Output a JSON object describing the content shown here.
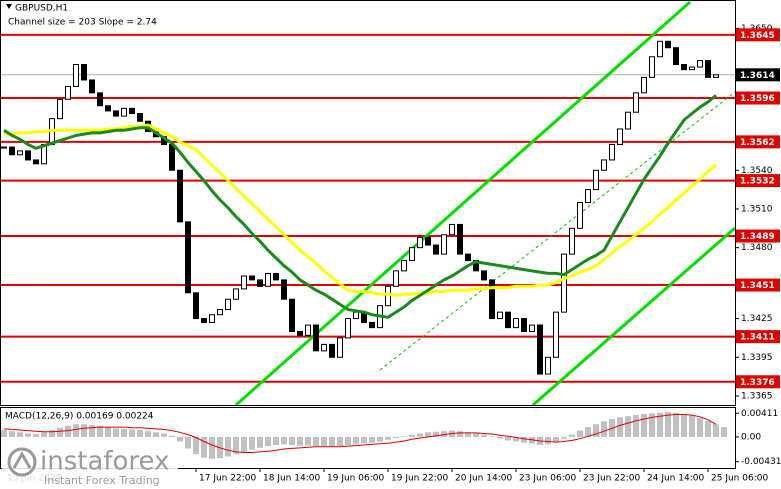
{
  "chart_data": [
    {
      "type": "candlestick",
      "title": "GBPUSD,H1",
      "subtitle": "Channel size = 203 Slope = 2.74",
      "categories": [
        "13 Jun 2025",
        null,
        null,
        null,
        null,
        null,
        null,
        null,
        null,
        null,
        null,
        null,
        null,
        null,
        null,
        null,
        null,
        null,
        null,
        null,
        null,
        null,
        null,
        null,
        "17 Jun 22:00",
        null,
        null,
        null,
        null,
        null,
        null,
        null,
        "18 Jun 14:00",
        null,
        null,
        null,
        null,
        null,
        null,
        null,
        "19 Jun 06:00",
        null,
        null,
        null,
        null,
        null,
        null,
        null,
        "19 Jun 22:00",
        null,
        null,
        null,
        null,
        null,
        null,
        null,
        "20 Jun 14:00",
        null,
        null,
        null,
        null,
        null,
        null,
        null,
        "23 Jun 06:00",
        null,
        null,
        null,
        null,
        null,
        null,
        null,
        "23 Jun 22:00",
        null,
        null,
        null,
        null,
        null,
        null,
        null,
        "24 Jun 14:00",
        null,
        null,
        null,
        null,
        null,
        null,
        null,
        "25 Jun 06:00",
        null
      ],
      "values": [
        1.3558,
        1.3552,
        1.3555,
        1.3548,
        1.3545,
        1.356,
        1.358,
        1.3595,
        1.3605,
        1.3622,
        1.361,
        1.36,
        1.359,
        1.3586,
        1.3582,
        1.3588,
        1.3584,
        1.3578,
        1.357,
        1.3566,
        1.356,
        1.354,
        1.35,
        1.3445,
        1.3425,
        1.3422,
        1.3428,
        1.3432,
        1.344,
        1.3448,
        1.3458,
        1.3455,
        1.345,
        1.346,
        1.3455,
        1.344,
        1.3415,
        1.3412,
        1.342,
        1.34,
        1.3405,
        1.3395,
        1.341,
        1.3425,
        1.343,
        1.3422,
        1.3418,
        1.3435,
        1.345,
        1.3462,
        1.347,
        1.348,
        1.3488,
        1.3482,
        1.3475,
        1.349,
        1.3498,
        1.3475,
        1.347,
        1.3462,
        1.3455,
        1.3425,
        1.343,
        1.3418,
        1.3425,
        1.3415,
        1.342,
        1.3382,
        1.3395,
        1.343,
        1.3475,
        1.3495,
        1.3515,
        1.3525,
        1.354,
        1.3548,
        1.356,
        1.3572,
        1.3585,
        1.36,
        1.3612,
        1.3628,
        1.364,
        1.3635,
        1.3622,
        1.3618,
        1.362,
        1.3625,
        1.3612,
        1.3614
      ],
      "up_color": "#ffffff",
      "down_color": "#000000",
      "lines": [
        {
          "color": "#ffff00",
          "values": [
            1.3568,
            1.3568,
            1.3569,
            1.3569,
            1.357,
            1.357,
            1.3571,
            1.3571,
            1.3571,
            1.3571,
            1.3571,
            1.3571,
            1.3571,
            1.3572,
            1.3572,
            1.3573,
            1.3574,
            1.3574,
            1.3575,
            1.3572,
            1.3569,
            1.3566,
            1.3562,
            1.3559,
            1.3556,
            1.355,
            1.3544,
            1.3538,
            1.3532,
            1.3526,
            1.352,
            1.3514,
            1.3508,
            1.3502,
            1.3496,
            1.349,
            1.3484,
            1.3478,
            1.3473,
            1.3468,
            1.3462,
            1.3457,
            1.3452,
            1.3447,
            1.3446,
            1.3446,
            1.3445,
            1.3444,
            1.3444,
            1.3443,
            1.3444,
            1.3444,
            1.3445,
            1.3445,
            1.3446,
            1.3446,
            1.3447,
            1.3447,
            1.3447,
            1.3448,
            1.3448,
            1.3449,
            1.3449,
            1.3449,
            1.345,
            1.345,
            1.345,
            1.3451,
            1.3451,
            1.3453,
            1.3456,
            1.3458,
            1.3461,
            1.3463,
            1.3466,
            1.3471,
            1.3476,
            1.3481,
            1.3485,
            1.349,
            1.3495,
            1.35,
            1.3506,
            1.3511,
            1.3517,
            1.3522,
            1.3528,
            1.3533,
            1.3539,
            1.3544
          ]
        },
        {
          "color": "#1a8a1a",
          "values": [
            1.3571,
            1.3567,
            1.3564,
            1.356,
            1.3557,
            1.3559,
            1.3561,
            1.3563,
            1.3565,
            1.3567,
            1.3568,
            1.3569,
            1.3569,
            1.357,
            1.3571,
            1.3571,
            1.3572,
            1.3573,
            1.3573,
            1.3569,
            1.3565,
            1.3561,
            1.3554,
            1.3546,
            1.3539,
            1.3532,
            1.3524,
            1.3517,
            1.3511,
            1.3504,
            1.3498,
            1.3491,
            1.3485,
            1.3478,
            1.3472,
            1.3466,
            1.3461,
            1.3455,
            1.3451,
            1.3447,
            1.3444,
            1.344,
            1.3436,
            1.3432,
            1.3431,
            1.343,
            1.3428,
            1.3427,
            1.3426,
            1.343,
            1.3434,
            1.3439,
            1.3443,
            1.3447,
            1.3451,
            1.3455,
            1.3458,
            1.3462,
            1.3466,
            1.3469,
            1.3468,
            1.3467,
            1.3466,
            1.3465,
            1.3464,
            1.3463,
            1.3462,
            1.3461,
            1.346,
            1.346,
            1.3459,
            1.3463,
            1.3467,
            1.3471,
            1.3474,
            1.3478,
            1.3489,
            1.35,
            1.3511,
            1.3522,
            1.3533,
            1.3542,
            1.3551,
            1.3561,
            1.357,
            1.3579,
            1.3584,
            1.3589,
            1.3593,
            1.3598
          ]
        }
      ],
      "levels": {
        "color": "#e00000",
        "values": [
          1.3645,
          1.3596,
          1.3562,
          1.3532,
          1.3489,
          1.3451,
          1.3411,
          1.3376
        ]
      },
      "last_price": 1.3614,
      "ylim": [
        1.3358,
        1.3672
      ],
      "yticks": [
        {
          "value": 1.365,
          "label": "1.3650"
        },
        {
          "value": 1.354,
          "label": "1.3540"
        },
        {
          "value": 1.351,
          "label": "1.3510"
        },
        {
          "value": 1.348,
          "label": "1.3480"
        },
        1.3425,
        1.3395,
        1.3365
      ]
    },
    {
      "type": "macd",
      "title": "MACD(12,26,9) 0.00169 0.00224",
      "color": "#c0c0c0",
      "values": [
        0.0012,
        0.001,
        0.0008,
        0.0006,
        0.0005,
        0.0008,
        0.0012,
        0.0016,
        0.0019,
        0.0022,
        0.0022,
        0.0021,
        0.0019,
        0.0017,
        0.0015,
        0.0014,
        0.0013,
        0.0012,
        0.001,
        0.0008,
        0.0006,
        0.0002,
        -0.0008,
        -0.002,
        -0.003,
        -0.0036,
        -0.0038,
        -0.0037,
        -0.0034,
        -0.003,
        -0.0026,
        -0.0022,
        -0.0019,
        -0.0016,
        -0.0014,
        -0.0013,
        -0.0014,
        -0.0015,
        -0.0015,
        -0.0016,
        -0.0016,
        -0.0017,
        -0.0016,
        -0.0014,
        -0.0012,
        -0.0011,
        -0.001,
        -0.0008,
        -0.0005,
        -0.0002,
        0.0001,
        0.0004,
        0.0006,
        0.0008,
        0.0009,
        0.001,
        0.0011,
        0.001,
        0.0008,
        0.0006,
        0.0004,
        0.0001,
        -0.0003,
        -0.0006,
        -0.0008,
        -0.001,
        -0.0011,
        -0.0014,
        -0.0013,
        -0.0009,
        -0.0003,
        0.0004,
        0.0011,
        0.0017,
        0.0022,
        0.0027,
        0.0031,
        0.0034,
        0.0036,
        0.0038,
        0.004,
        0.0041,
        0.0042,
        0.0043,
        0.0042,
        0.004,
        0.0037,
        0.0033,
        0.0028,
        0.0022,
        0.0017
      ],
      "signal": {
        "color": "#e00000",
        "values": [
          0.0014,
          0.0013,
          0.0012,
          0.0011,
          0.001,
          0.0009,
          0.0009,
          0.001,
          0.0011,
          0.0013,
          0.0015,
          0.0016,
          0.0017,
          0.0017,
          0.0017,
          0.0017,
          0.0016,
          0.0016,
          0.0015,
          0.0014,
          0.0013,
          0.0011,
          0.0008,
          0.0004,
          -0.0001,
          -0.0008,
          -0.0014,
          -0.0019,
          -0.0023,
          -0.0026,
          -0.0027,
          -0.0027,
          -0.0026,
          -0.0025,
          -0.0023,
          -0.0021,
          -0.002,
          -0.0019,
          -0.0018,
          -0.0017,
          -0.0017,
          -0.0017,
          -0.0017,
          -0.0016,
          -0.0015,
          -0.0014,
          -0.0013,
          -0.0012,
          -0.0011,
          -0.0009,
          -0.0007,
          -0.0004,
          -0.0002,
          0.0,
          0.0002,
          0.0004,
          0.0006,
          0.0007,
          0.0007,
          0.0007,
          0.0006,
          0.0005,
          0.0003,
          0.0001,
          -0.0001,
          -0.0003,
          -0.0005,
          -0.0007,
          -0.0008,
          -0.0009,
          -0.0008,
          -0.0006,
          -0.0003,
          0.0001,
          0.0005,
          0.001,
          0.0015,
          0.002,
          0.0024,
          0.0028,
          0.0031,
          0.0034,
          0.0036,
          0.0038,
          0.0039,
          0.0039,
          0.0038,
          0.0035,
          0.003,
          0.0022
        ]
      },
      "ylim": [
        -0.0054,
        0.0052
      ],
      "yticks": [
        0.00411,
        {
          "value": 0,
          "label": "0.00"
        },
        -0.00431
      ]
    }
  ],
  "watermark": {
    "brand": "instaforex",
    "tagline": "Instant Forex Trading"
  }
}
